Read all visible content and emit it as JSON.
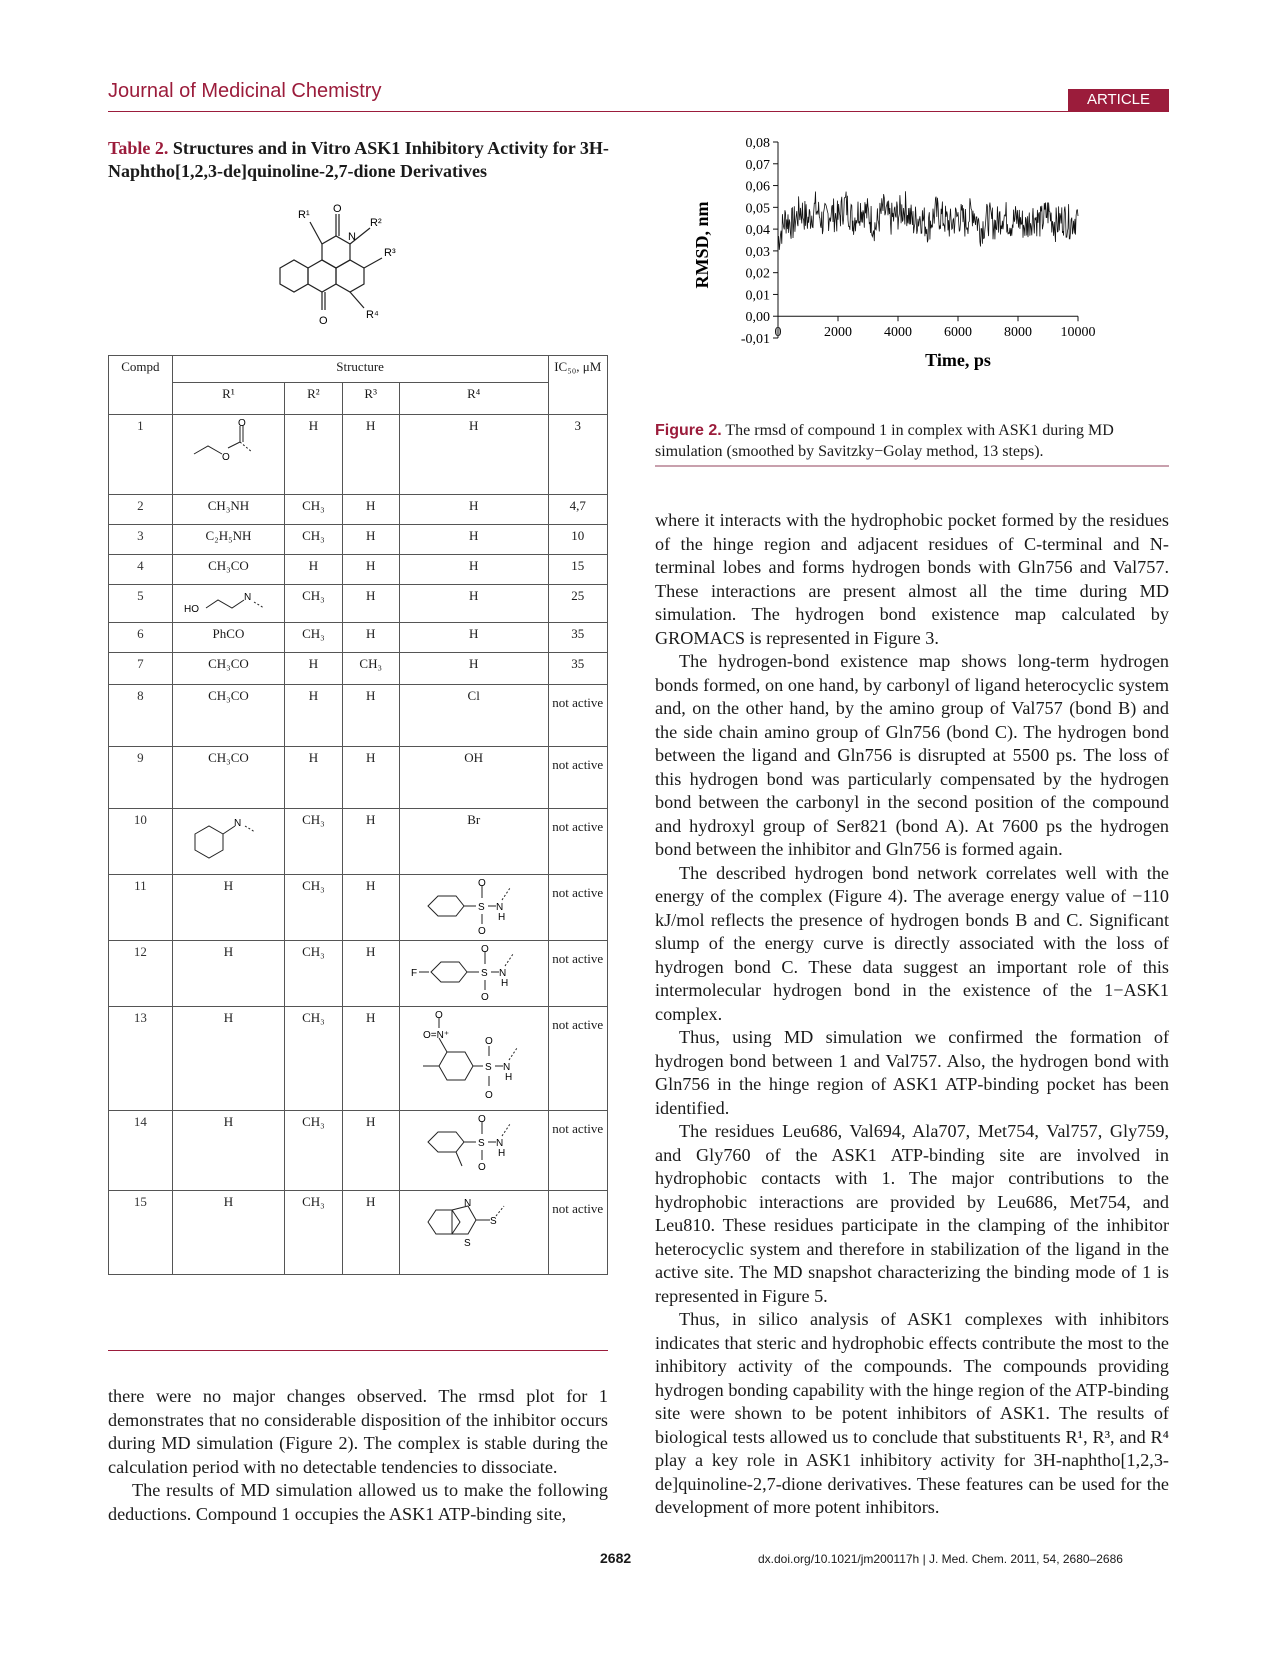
{
  "header": {
    "journal": "Journal of Medicinal Chemistry",
    "badge": "ARTICLE"
  },
  "table": {
    "title_num": "Table 2.",
    "title_text": " Structures and in Vitro ASK1 Inhibitory Activity for 3H-Naphtho[1,2,3-de]quinoline-2,7-dione Derivatives",
    "core_labels": {
      "r1": "R¹",
      "r2": "R²",
      "r3": "R³",
      "r4": "R⁴",
      "o": "O",
      "n": "N"
    },
    "headers": {
      "compd": "Compd",
      "structure": "Structure",
      "ic50": "IC₅₀, μM",
      "r1": "R¹",
      "r2": "R²",
      "r3": "R³",
      "r4": "R⁴"
    },
    "rows": [
      {
        "id": "1",
        "r1": "",
        "r2": "H",
        "r3": "H",
        "r4": "H",
        "ic50": "3"
      },
      {
        "id": "2",
        "r1": "CH₃NH",
        "r2": "CH₃",
        "r3": "H",
        "r4": "H",
        "ic50": "4,7"
      },
      {
        "id": "3",
        "r1": "C₂H₅NH",
        "r2": "CH₃",
        "r3": "H",
        "r4": "H",
        "ic50": "10"
      },
      {
        "id": "4",
        "r1": "CH₃CO",
        "r2": "H",
        "r3": "H",
        "r4": "H",
        "ic50": "15"
      },
      {
        "id": "5",
        "r1": "",
        "r2": "CH₃",
        "r3": "H",
        "r4": "H",
        "ic50": "25"
      },
      {
        "id": "6",
        "r1": "PhCO",
        "r2": "CH₃",
        "r3": "H",
        "r4": "H",
        "ic50": "35"
      },
      {
        "id": "7",
        "r1": "CH₃CO",
        "r2": "H",
        "r3": "CH₃",
        "r4": "H",
        "ic50": "35"
      },
      {
        "id": "8",
        "r1": "CH₃CO",
        "r2": "H",
        "r3": "H",
        "r4": "Cl",
        "ic50": "not active"
      },
      {
        "id": "9",
        "r1": "CH₃CO",
        "r2": "H",
        "r3": "H",
        "r4": "OH",
        "ic50": "not active"
      },
      {
        "id": "10",
        "r1": "",
        "r2": "CH₃",
        "r3": "H",
        "r4": "Br",
        "ic50": "not active"
      },
      {
        "id": "11",
        "r1": "H",
        "r2": "CH₃",
        "r3": "H",
        "r4": "",
        "ic50": "not active"
      },
      {
        "id": "12",
        "r1": "H",
        "r2": "CH₃",
        "r3": "H",
        "r4": "",
        "ic50": "not active"
      },
      {
        "id": "13",
        "r1": "H",
        "r2": "CH₃",
        "r3": "H",
        "r4": "",
        "ic50": "not active"
      },
      {
        "id": "14",
        "r1": "H",
        "r2": "CH₃",
        "r3": "H",
        "r4": "",
        "ic50": "not active"
      },
      {
        "id": "15",
        "r1": "H",
        "r2": "CH₃",
        "r3": "H",
        "r4": "",
        "ic50": "not active"
      }
    ],
    "drawn_labels": {
      "ho": "HO",
      "n": "N",
      "f": "F",
      "s": "S",
      "o": "O",
      "h": "H",
      "no2": "O=N⁺"
    }
  },
  "figure2": {
    "caption_num": "Figure 2.",
    "caption_text": " The rmsd of compound 1 in complex with ASK1 during MD simulation (smoothed by Savitzky−Golay method, 13 steps)."
  },
  "chart_data": {
    "type": "line",
    "title": "",
    "xlabel": "Time, ps",
    "ylabel": "RMSD, nm",
    "xlim": [
      0,
      10000
    ],
    "ylim": [
      -0.01,
      0.08
    ],
    "xticks": [
      "0",
      "2000",
      "4000",
      "6000",
      "8000",
      "10000"
    ],
    "yticks": [
      "-0,01",
      "0,00",
      "0,01",
      "0,02",
      "0,03",
      "0,04",
      "0,05",
      "0,06",
      "0,07",
      "0,08"
    ],
    "series": [
      {
        "x": [
          0,
          250,
          500,
          750,
          1000,
          1250,
          1500,
          1750,
          2000,
          2250,
          2500,
          2750,
          3000,
          3250,
          3500,
          3750,
          4000,
          4250,
          4500,
          4750,
          5000,
          5250,
          5500,
          5750,
          6000,
          6250,
          6500,
          6750,
          7000,
          7250,
          7500,
          7750,
          8000,
          8250,
          8500,
          8750,
          9000,
          9250,
          9500,
          9750,
          10000
        ],
        "y": [
          0.035,
          0.045,
          0.042,
          0.049,
          0.044,
          0.05,
          0.043,
          0.048,
          0.045,
          0.052,
          0.044,
          0.05,
          0.047,
          0.041,
          0.049,
          0.044,
          0.047,
          0.05,
          0.043,
          0.046,
          0.041,
          0.048,
          0.045,
          0.042,
          0.046,
          0.043,
          0.049,
          0.04,
          0.045,
          0.042,
          0.047,
          0.043,
          0.045,
          0.041,
          0.046,
          0.043,
          0.048,
          0.042,
          0.045,
          0.043,
          0.046
        ]
      }
    ],
    "grid": false
  },
  "left_text": {
    "p1": "there were no major changes observed. The rmsd plot for 1 demonstrates that no considerable disposition of the inhibitor occurs during MD simulation (Figure 2). The complex is stable during the calculation period with no detectable tendencies to dissociate.",
    "p2": "The results of MD simulation allowed us to make the following deductions. Compound 1 occupies the ASK1 ATP-binding site,"
  },
  "right_text": {
    "p1": "where it interacts with the hydrophobic pocket formed by the residues of the hinge region and adjacent residues of C-terminal and N-terminal lobes and forms hydrogen bonds with Gln756 and Val757. These interactions are present almost all the time during MD simulation. The hydrogen bond existence map calculated by GROMACS is represented in Figure 3.",
    "p2": "The hydrogen-bond existence map shows long-term hydrogen bonds formed, on one hand, by carbonyl of ligand heterocyclic system and, on the other hand, by the amino group of Val757 (bond B) and the side chain amino group of Gln756 (bond C). The hydrogen bond between the ligand and Gln756 is disrupted at 5500 ps. The loss of this hydrogen bond was particularly compensated by the hydrogen bond between the carbonyl in the second position of the compound and hydroxyl group of Ser821 (bond A). At 7600 ps the hydrogen bond between the inhibitor and Gln756 is formed again.",
    "p3": "The described hydrogen bond network correlates well with the energy of the complex (Figure 4). The average energy value of −110 kJ/mol reflects the presence of hydrogen bonds B and C. Significant slump of the energy curve is directly associated with the loss of hydrogen bond C. These data suggest an important role of this intermolecular hydrogen bond in the existence of the 1−ASK1 complex.",
    "p4": "Thus, using MD simulation we confirmed the formation of hydrogen bond between 1 and Val757. Also, the hydrogen bond with Gln756 in the hinge region of ASK1 ATP-binding pocket has been identified.",
    "p5": "The residues Leu686, Val694, Ala707, Met754, Val757, Gly759, and Gly760 of the ASK1 ATP-binding site are involved in hydrophobic contacts with 1. The major contributions to the hydrophobic interactions are provided by Leu686, Met754, and Leu810. These residues participate in the clamping of the inhibitor heterocyclic system and therefore in stabilization of the ligand in the active site. The MD snapshot characterizing the binding mode of 1 is represented in Figure 5.",
    "p6": "Thus, in silico analysis of ASK1 complexes with inhibitors indicates that steric and hydrophobic effects contribute the most to the inhibitory activity of the compounds. The compounds providing hydrogen bonding capability with the hinge region of the ATP-binding site were shown to be potent inhibitors of ASK1. The results of biological tests allowed us to conclude that substituents R¹, R³, and R⁴ play a key role in ASK1 inhibitory activity for 3H-naphtho[1,2,3-de]quinoline-2,7-dione derivatives. These features can be used for the development of more potent inhibitors."
  },
  "footer": {
    "page": "2682",
    "doi": "dx.doi.org/10.1021/jm200117h | J. Med. Chem. 2011, 54, 2680–2686"
  }
}
